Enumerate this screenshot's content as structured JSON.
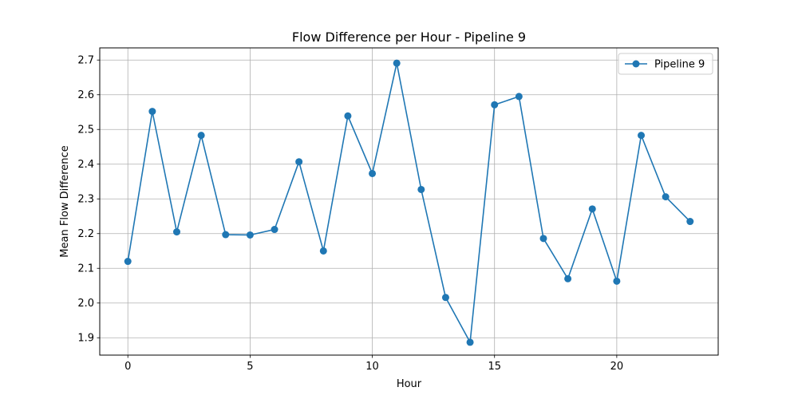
{
  "chart_data": {
    "type": "line",
    "title": "Flow Difference per Hour - Pipeline 9",
    "xlabel": "Hour",
    "ylabel": "Mean Flow Difference",
    "xlim": [
      -1.15,
      24.15
    ],
    "ylim": [
      1.85,
      2.735
    ],
    "xticks": [
      0,
      5,
      10,
      15,
      20
    ],
    "yticks": [
      1.9,
      2.0,
      2.1,
      2.2,
      2.3,
      2.4,
      2.5,
      2.6,
      2.7
    ],
    "xtick_labels": [
      "0",
      "5",
      "10",
      "15",
      "20"
    ],
    "ytick_labels": [
      "1.9",
      "2.0",
      "2.1",
      "2.2",
      "2.3",
      "2.4",
      "2.5",
      "2.6",
      "2.7"
    ],
    "grid": true,
    "legend_position": "top-right",
    "x": [
      0,
      1,
      2,
      3,
      4,
      5,
      6,
      7,
      8,
      9,
      10,
      11,
      12,
      13,
      14,
      15,
      16,
      17,
      18,
      19,
      20,
      21,
      22,
      23
    ],
    "series": [
      {
        "name": "Pipeline 9",
        "color": "#1f77b4",
        "marker": "circle",
        "values": [
          2.12,
          2.552,
          2.205,
          2.483,
          2.197,
          2.196,
          2.212,
          2.407,
          2.15,
          2.539,
          2.373,
          2.691,
          2.327,
          2.016,
          1.887,
          2.571,
          2.595,
          2.186,
          2.07,
          2.271,
          2.063,
          2.483,
          2.306,
          2.235
        ]
      }
    ]
  }
}
